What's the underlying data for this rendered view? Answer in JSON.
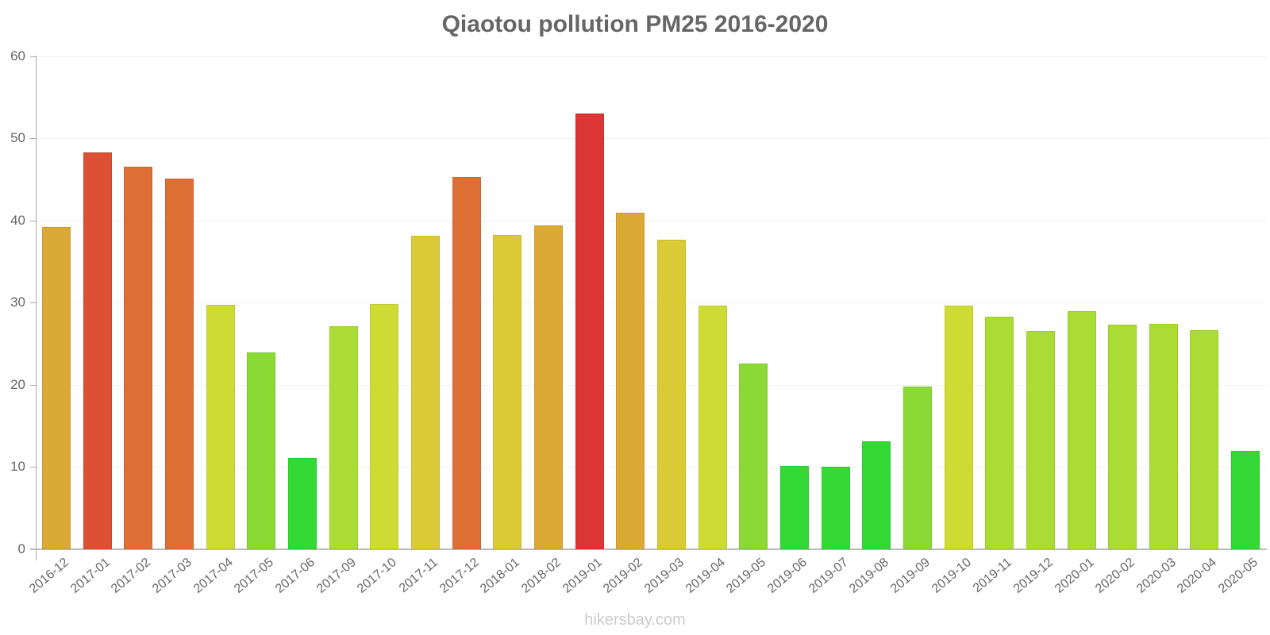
{
  "title": "Qiaotou pollution PM25 2016-2020",
  "footer": "hikersbay.com",
  "y_ticks": [
    "0",
    "10",
    "20",
    "30",
    "40",
    "50",
    "60"
  ],
  "chart_data": {
    "type": "bar",
    "title": "Qiaotou pollution PM25 2016-2020",
    "xlabel": "",
    "ylabel": "",
    "ylim": [
      0,
      60
    ],
    "yticks": [
      0,
      10,
      20,
      30,
      40,
      50,
      60
    ],
    "grid": true,
    "legend": "none",
    "categories": [
      "2016-12",
      "2017-01",
      "2017-02",
      "2017-03",
      "2017-04",
      "2017-05",
      "2017-06",
      "2017-09",
      "2017-10",
      "2017-11",
      "2017-12",
      "2018-01",
      "2018-02",
      "2019-01",
      "2019-02",
      "2019-03",
      "2019-04",
      "2019-05",
      "2019-06",
      "2019-07",
      "2019-08",
      "2019-09",
      "2019-10",
      "2019-11",
      "2019-12",
      "2020-01",
      "2020-02",
      "2020-03",
      "2020-04",
      "2020-05"
    ],
    "values": [
      39.2,
      48.3,
      46.5,
      45.1,
      29.7,
      23.9,
      11.1,
      27.1,
      29.8,
      38.1,
      45.3,
      38.2,
      39.4,
      53.0,
      40.9,
      37.7,
      29.6,
      22.6,
      10.1,
      10.0,
      13.1,
      19.8,
      29.6,
      28.3,
      26.5,
      29.0,
      27.3,
      27.4,
      26.6,
      12.0
    ],
    "colors": [
      "#dba935",
      "#dc5034",
      "#dd6f35",
      "#dd6f35",
      "#cfdb35",
      "#8ad935",
      "#34d935",
      "#abdb35",
      "#cfdb35",
      "#dbca35",
      "#dd6f35",
      "#dbca35",
      "#dba935",
      "#dc3535",
      "#dba935",
      "#dbca35",
      "#cfdb35",
      "#8ad935",
      "#34d935",
      "#34d935",
      "#34d935",
      "#8ad935",
      "#cfdb35",
      "#abdb35",
      "#abdb35",
      "#abdb35",
      "#abdb35",
      "#abdb35",
      "#abdb35",
      "#34d935"
    ],
    "footer": "hikersbay.com"
  }
}
